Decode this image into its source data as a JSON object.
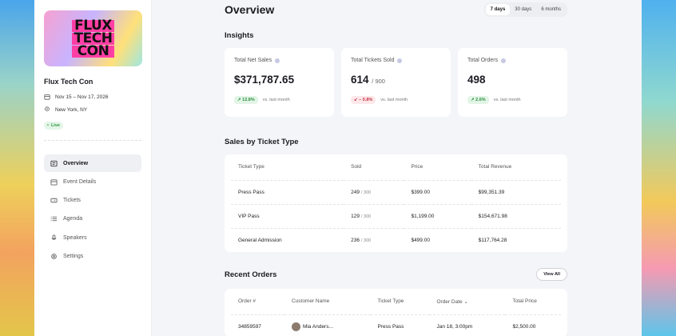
{
  "sidebar": {
    "logo_lines": [
      "FLUX",
      "TECH",
      "CON"
    ],
    "event_name": "Flux Tech Con",
    "dates": "Nov 15 – Nov 17, 2026",
    "location": "New York, NY",
    "status": "Live",
    "nav": [
      {
        "label": "Overview",
        "icon": "overview-icon",
        "active": true
      },
      {
        "label": "Event Details",
        "icon": "calendar-icon"
      },
      {
        "label": "Tickets",
        "icon": "ticket-icon"
      },
      {
        "label": "Agenda",
        "icon": "list-icon"
      },
      {
        "label": "Speakers",
        "icon": "mic-icon"
      },
      {
        "label": "Settings",
        "icon": "gear-icon"
      }
    ]
  },
  "header": {
    "title": "Overview",
    "ranges": [
      "7 days",
      "30 days",
      "6 months"
    ]
  },
  "insights": {
    "title": "Insights",
    "cards": [
      {
        "label": "Total Net Sales",
        "value": "$371,787.65",
        "sub": "",
        "delta": "12.8%",
        "direction": "up",
        "vs": "vs. last month"
      },
      {
        "label": "Total Tickets Sold",
        "value": "614",
        "sub": "/ 900",
        "delta": "– 0.8%",
        "direction": "down",
        "vs": "vs. last month"
      },
      {
        "label": "Total Orders",
        "value": "498",
        "sub": "",
        "delta": "2.6%",
        "direction": "up",
        "vs": "vs. last month"
      }
    ]
  },
  "sales": {
    "title": "Sales by Ticket Type",
    "columns": [
      "Ticket Type",
      "Sold",
      "Price",
      "Total Revenue"
    ],
    "rows": [
      {
        "type": "Press Pass",
        "sold": "249",
        "cap": "/ 300",
        "price": "$399.00",
        "revenue": "$99,351.39"
      },
      {
        "type": "VIP Pass",
        "sold": "129",
        "cap": "/ 300",
        "price": "$1,199.00",
        "revenue": "$154,671.98"
      },
      {
        "type": "General Admission",
        "sold": "236",
        "cap": "/ 300",
        "price": "$499.00",
        "revenue": "$117,764.28"
      }
    ]
  },
  "orders": {
    "title": "Recent Orders",
    "view_all": "View All",
    "columns": [
      "Order #",
      "Customer Name",
      "Ticket Type",
      "Order Date",
      "Total Price"
    ],
    "rows": [
      {
        "order": "34859597",
        "customer": "Mia Anders...",
        "ticket": "Press Pass",
        "date": "Jan 18, 3:00pm",
        "price": "$2,500.00"
      }
    ]
  },
  "colors": {
    "accent_up": "#2f8f43",
    "accent_down": "#c4354a",
    "live": "#2f9a46"
  }
}
